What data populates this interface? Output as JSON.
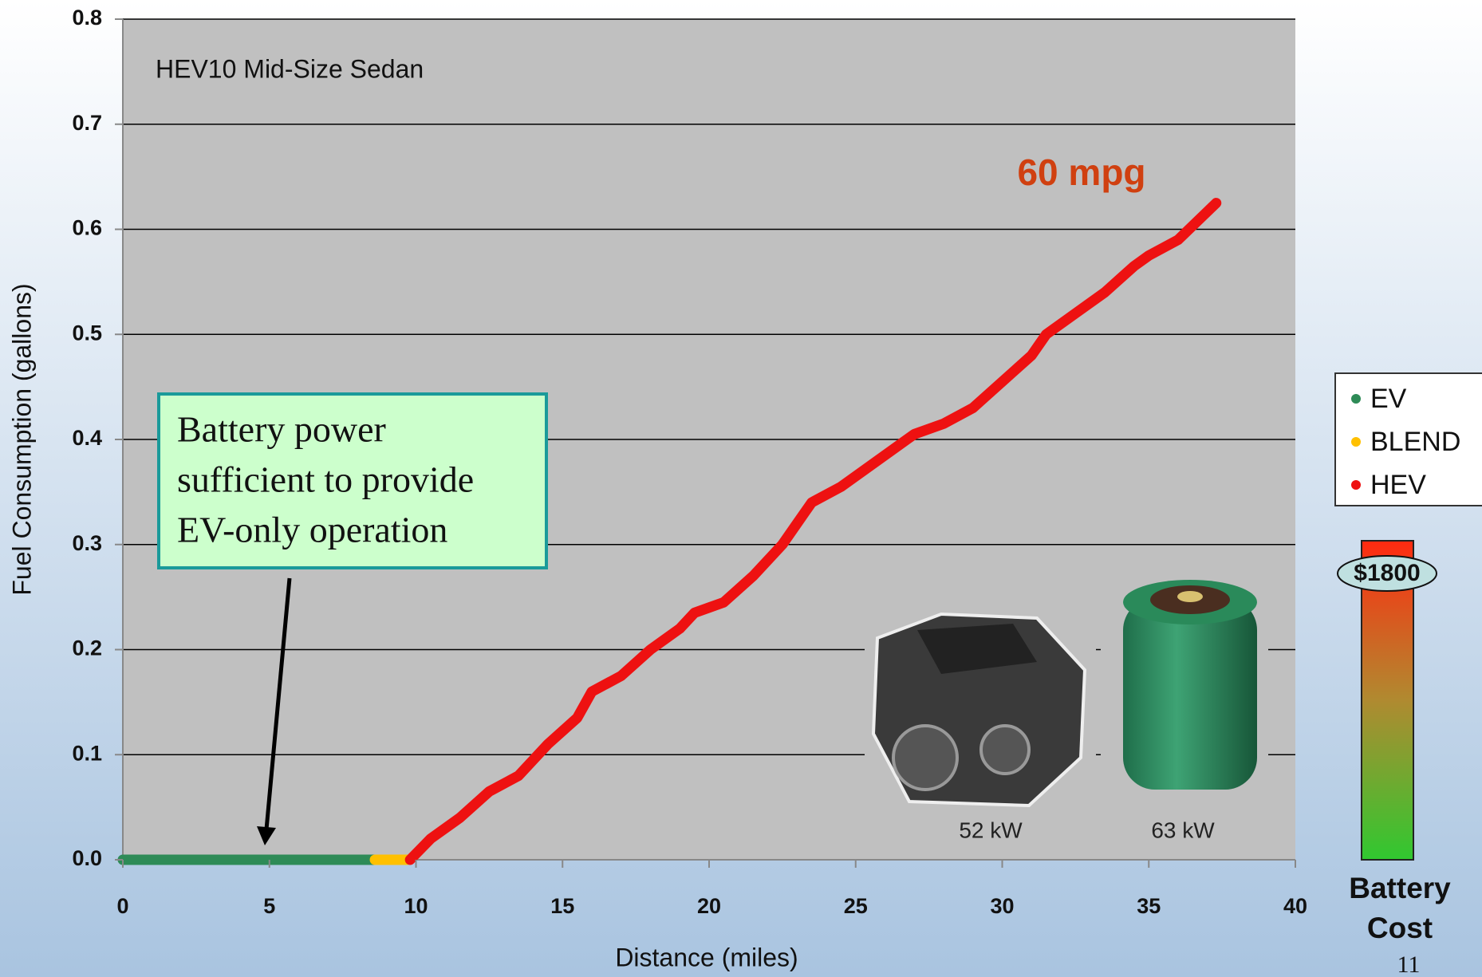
{
  "chart_data": {
    "type": "line",
    "inner_title": "HEV10 Mid-Size Sedan",
    "xlabel": "Distance (miles)",
    "ylabel": "Fuel Consumption (gallons)",
    "xlim": [
      0,
      40
    ],
    "xticks": [
      0,
      5,
      10,
      15,
      20,
      25,
      30,
      35,
      40
    ],
    "ylim": [
      0,
      0.8
    ],
    "yticks": [
      {
        "value": 0,
        "label": "0.0"
      },
      0.1,
      0.2,
      0.3,
      0.4,
      0.5,
      0.6,
      0.7,
      0.8
    ],
    "grid": true,
    "series": [
      {
        "name": "EV",
        "color": "#2e8b57",
        "x": [
          0,
          8.6
        ],
        "values": [
          0,
          0
        ]
      },
      {
        "name": "BLEND",
        "color": "#ffc000",
        "x": [
          8.6,
          9.7
        ],
        "values": [
          0,
          0
        ]
      },
      {
        "name": "HEV",
        "color": "#ee1111",
        "x": [
          9.8,
          10.5,
          11.5,
          12.5,
          13.5,
          14.5,
          15.5,
          16,
          17,
          18,
          19,
          19.5,
          20.5,
          21.5,
          22.5,
          23,
          23.5,
          24.5,
          25.5,
          26.5,
          27,
          28,
          29,
          30,
          31,
          31.5,
          32.5,
          33.5,
          34.5,
          35,
          36,
          37.3
        ],
        "values": [
          0.0,
          0.02,
          0.04,
          0.065,
          0.08,
          0.11,
          0.135,
          0.16,
          0.175,
          0.2,
          0.22,
          0.235,
          0.245,
          0.27,
          0.3,
          0.32,
          0.34,
          0.355,
          0.375,
          0.395,
          0.405,
          0.415,
          0.43,
          0.455,
          0.48,
          0.5,
          0.52,
          0.54,
          0.565,
          0.575,
          0.59,
          0.625
        ]
      }
    ],
    "legend": "right",
    "annotation": [
      "Battery power",
      "sufficient to provide",
      "EV-only operation"
    ],
    "mpg_label": "60 mpg",
    "component_labels": [
      "52 kW",
      "63 kW"
    ],
    "battery_cost": {
      "label": "$1800",
      "title": [
        "Battery",
        "Cost"
      ]
    },
    "page_number": "11"
  }
}
